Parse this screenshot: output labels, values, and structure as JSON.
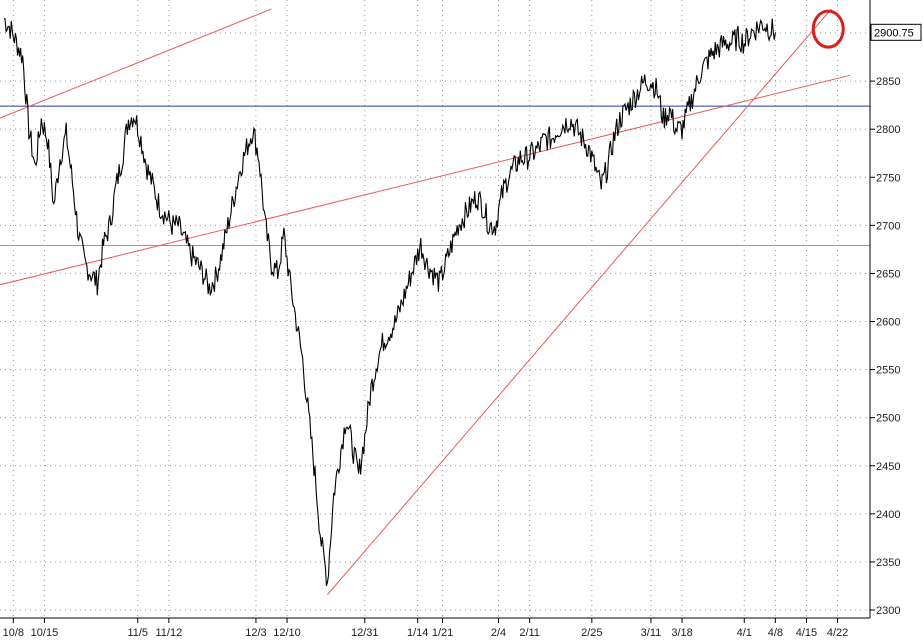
{
  "chart_data": {
    "type": "line",
    "title": "",
    "xlabel": "",
    "ylabel": "",
    "ylim": [
      2300,
      2925
    ],
    "grid": true,
    "y_ticks": [
      2300,
      2350,
      2400,
      2450,
      2500,
      2550,
      2600,
      2650,
      2700,
      2750,
      2800,
      2850,
      2900
    ],
    "y_tick_labels": [
      "2300",
      "2350",
      "2400",
      "2450",
      "2500",
      "2550",
      "2600",
      "2650",
      "2700",
      "2750",
      "2800",
      "2850",
      "2900"
    ],
    "x_ticks": [
      {
        "label": "10/8",
        "idx": 1.5
      },
      {
        "label": "10/15",
        "idx": 6.5
      },
      {
        "label": "11/5",
        "idx": 21.5
      },
      {
        "label": "11/12",
        "idx": 26.5
      },
      {
        "label": "12/3",
        "idx": 40.5
      },
      {
        "label": "12/10",
        "idx": 45.5
      },
      {
        "label": "12/31",
        "idx": 58
      },
      {
        "label": "1/14",
        "idx": 66.5
      },
      {
        "label": "1/21",
        "idx": 70.5
      },
      {
        "label": "2/4",
        "idx": 79.5
      },
      {
        "label": "2/11",
        "idx": 84.5
      },
      {
        "label": "2/25",
        "idx": 94.5
      },
      {
        "label": "3/11",
        "idx": 104
      },
      {
        "label": "3/18",
        "idx": 109
      },
      {
        "label": "4/1",
        "idx": 119
      },
      {
        "label": "4/8",
        "idx": 124
      },
      {
        "label": "4/15",
        "idx": 129
      },
      {
        "label": "4/22",
        "idx": 134
      }
    ],
    "x_index_range": [
      0,
      136
    ],
    "last_price_label": "2900.75",
    "series": [
      {
        "color": "#000000",
        "values": [
          2915,
          2905,
          2890,
          2875,
          2800,
          2760,
          2810,
          2790,
          2720,
          2770,
          2795,
          2745,
          2690,
          2660,
          2650,
          2640,
          2680,
          2700,
          2740,
          2770,
          2810,
          2815,
          2790,
          2760,
          2740,
          2720,
          2710,
          2700,
          2700,
          2685,
          2670,
          2660,
          2650,
          2635,
          2645,
          2670,
          2700,
          2730,
          2760,
          2780,
          2800,
          2770,
          2700,
          2660,
          2650,
          2690,
          2640,
          2600,
          2560,
          2500,
          2440,
          2370,
          2330,
          2420,
          2460,
          2500,
          2470,
          2440,
          2480,
          2530,
          2560,
          2580,
          2590,
          2600,
          2620,
          2640,
          2660,
          2680,
          2660,
          2650,
          2640,
          2660,
          2680,
          2700,
          2710,
          2720,
          2730,
          2720,
          2700,
          2700,
          2730,
          2750,
          2760,
          2770,
          2770,
          2775,
          2780,
          2790,
          2790,
          2800,
          2805,
          2810,
          2800,
          2790,
          2780,
          2760,
          2740,
          2760,
          2790,
          2810,
          2820,
          2830,
          2840,
          2850,
          2850,
          2840,
          2810,
          2820,
          2800,
          2800,
          2820,
          2840,
          2860,
          2870,
          2880,
          2885,
          2890,
          2890,
          2895,
          2890,
          2900,
          2905,
          2910,
          2905,
          2900.75
        ]
      }
    ],
    "reference_lines": [
      {
        "type": "horizontal",
        "value": 2824,
        "color": "#1f3f9f"
      },
      {
        "type": "horizontal",
        "value": 2679,
        "color": "#3fbfbf"
      },
      {
        "type": "segment",
        "color": "#e85a5a",
        "from": {
          "idx": -2,
          "value": 2808
        },
        "to": {
          "idx": 43,
          "value": 2925
        }
      },
      {
        "type": "segment",
        "color": "#e85a5a",
        "from": {
          "idx": -2,
          "value": 2636
        },
        "to": {
          "idx": 136,
          "value": 2856
        }
      },
      {
        "type": "segment",
        "color": "#e85a5a",
        "from": {
          "idx": 52,
          "value": 2316
        },
        "to": {
          "idx": 133,
          "value": 2925
        }
      }
    ],
    "annotations": [
      {
        "type": "circle",
        "idx": 132.5,
        "value": 2904,
        "color": "#d81e1e"
      }
    ]
  }
}
